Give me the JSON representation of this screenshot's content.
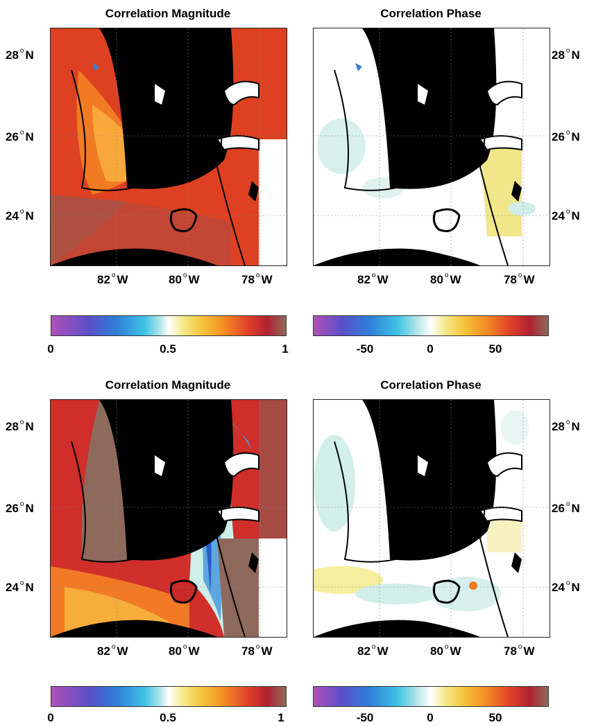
{
  "panels": [
    {
      "title": "Correlation Magnitude",
      "lat_labels": [
        "28",
        "26",
        "24"
      ],
      "lon_labels": [
        "82",
        "80",
        "78"
      ],
      "lat_hemi": "N",
      "lon_hemi": "W",
      "colorbar_ticks": [
        "0",
        "0.5",
        "1"
      ],
      "colormap": "magnitude"
    },
    {
      "title": "Correlation Phase",
      "lat_labels": [
        "28",
        "26",
        "24"
      ],
      "lon_labels": [
        "82",
        "80",
        "78"
      ],
      "lat_hemi": "N",
      "lon_hemi": "W",
      "colorbar_ticks": [
        "-50",
        "0",
        "50"
      ],
      "colormap": "phase"
    },
    {
      "title": "Correlation Magnitude",
      "lat_labels": [
        "28",
        "26",
        "24"
      ],
      "lon_labels": [
        "82",
        "80",
        "78"
      ],
      "lat_hemi": "N",
      "lon_hemi": "W",
      "colorbar_ticks": [
        "0",
        "0.5",
        "1"
      ],
      "colormap": "magnitude"
    },
    {
      "title": "Correlation Phase",
      "lat_labels": [
        "28",
        "26",
        "24"
      ],
      "lon_labels": [
        "82",
        "80",
        "78"
      ],
      "lat_hemi": "N",
      "lon_hemi": "W",
      "colorbar_ticks": [
        "-50",
        "0",
        "50"
      ],
      "colormap": "phase"
    }
  ],
  "colors": {
    "land": "#000000",
    "magnitude_high": "#c0282b",
    "magnitude_mid": "#f07020",
    "phase_background": "#ffffff",
    "phase_yellow": "#f4ec9a",
    "phase_cyan": "#cdeee8",
    "saturated_brown": "#8e6a5c"
  }
}
